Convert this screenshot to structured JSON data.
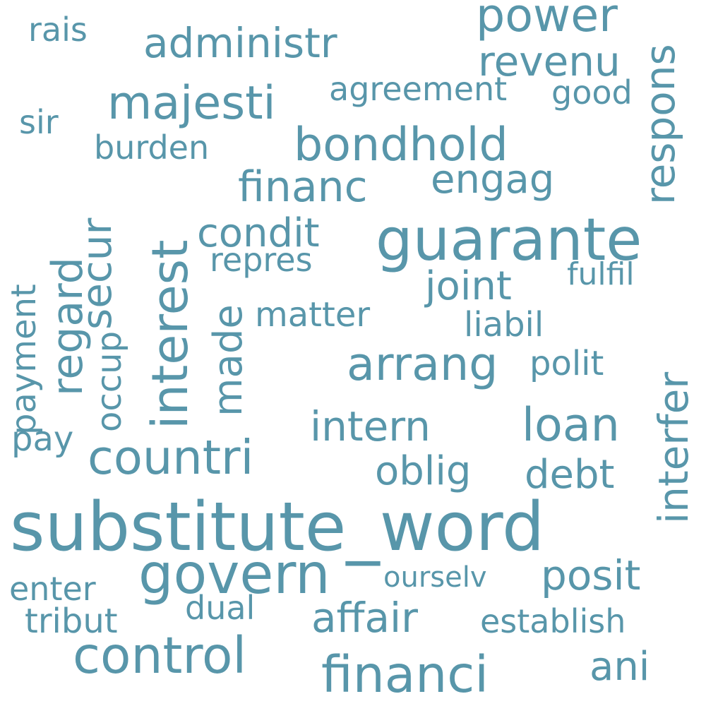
{
  "color": "#5896aa",
  "words": {
    "substitute_word": "substitute_word",
    "guarante": "guarante",
    "govern": "govern",
    "interest": "interest",
    "financi": "financi",
    "control": "control",
    "countri": "countri",
    "bondhold": "bondhold",
    "majesti": "majesti",
    "power": "power",
    "loan": "loan",
    "arrang": "arrang",
    "affair": "affair",
    "financ": "financ",
    "administr": "administr",
    "revenu": "revenu",
    "regard": "regard",
    "intern": "intern",
    "secur": "secur",
    "respons": "respons",
    "interfer": "interfer",
    "posit": "posit",
    "oblig": "oblig",
    "debt": "debt",
    "condit": "condit",
    "engag": "engag",
    "joint": "joint",
    "ani": "ani",
    "made": "made",
    "agreement": "agreement",
    "establish": "establish",
    "liabil": "liabil",
    "occup": "occup",
    "matter": "matter",
    "polit": "polit",
    "tribut": "tribut",
    "rais": "rais",
    "good": "good",
    "burden": "burden",
    "enter": "enter",
    "dual": "dual",
    "sir": "sir",
    "payment": "payment",
    "repres": "repres",
    "fulfil": "fulfil",
    "pay": "pay",
    "ourselv": "ourselv"
  }
}
